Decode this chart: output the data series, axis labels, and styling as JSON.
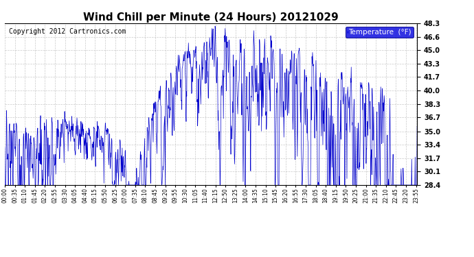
{
  "title": "Wind Chill per Minute (24 Hours) 20121029",
  "copyright": "Copyright 2012 Cartronics.com",
  "legend_label": "Temperature  (°F)",
  "y_ticks": [
    28.4,
    30.1,
    31.7,
    33.4,
    35.0,
    36.7,
    38.3,
    40.0,
    41.7,
    43.3,
    45.0,
    46.6,
    48.3
  ],
  "ylim": [
    28.4,
    48.3
  ],
  "background_color": "#ffffff",
  "plot_bg_color": "#ffffff",
  "grid_color": "#bbbbbb",
  "line_color": "#0000cc",
  "title_fontsize": 11,
  "copyright_fontsize": 7,
  "x_tick_interval_minutes": 35,
  "total_minutes": 1440,
  "legend_bg": "#0000dd",
  "legend_text_color": "#ffffff"
}
